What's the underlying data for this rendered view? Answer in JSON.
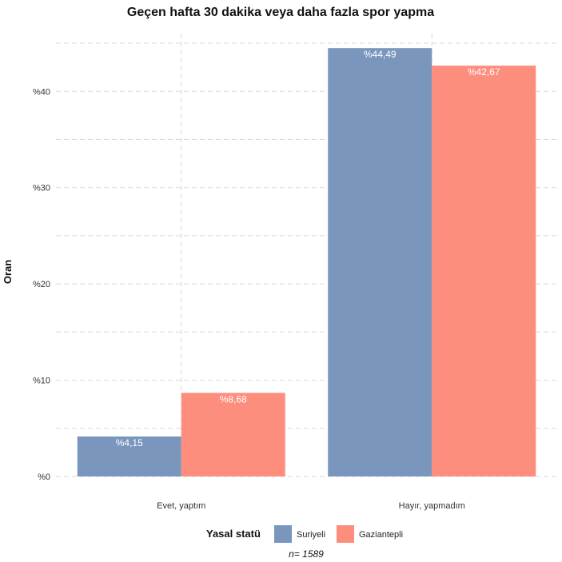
{
  "chart_data": {
    "type": "bar",
    "title": "Geçen hafta 30 dakika veya daha fazla spor yapma",
    "ylabel": "Oran",
    "xlabel": "",
    "categories": [
      "Evet, yaptım",
      "Hayır, yapmadım"
    ],
    "series": [
      {
        "name": "Suriyeli",
        "values": [
          4.15,
          44.49
        ],
        "labels": [
          "%4,15",
          "%44,49"
        ],
        "color": "#7a96bc"
      },
      {
        "name": "Gaziantepli",
        "values": [
          8.68,
          42.67
        ],
        "labels": [
          "%8,68",
          "%42,67"
        ],
        "color": "#fd8e7e"
      }
    ],
    "ylim": [
      0,
      46
    ],
    "yticks": [
      0,
      10,
      20,
      30,
      40
    ],
    "ytick_labels": [
      "%0",
      "%10",
      "%20",
      "%30",
      "%40"
    ],
    "grid": true,
    "legend": {
      "title": "Yasal statü",
      "position": "bottom"
    },
    "caption": "n= 1589"
  }
}
